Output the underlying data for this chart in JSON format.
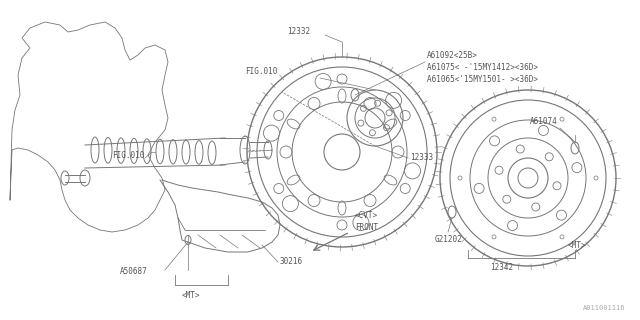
{
  "bg_color": "#ffffff",
  "line_color": "#777777",
  "text_color": "#555555",
  "watermark": "A011001116",
  "figsize": [
    6.4,
    3.2
  ],
  "dpi": 100,
  "xlim": [
    0,
    640
  ],
  "ylim": [
    0,
    320
  ]
}
